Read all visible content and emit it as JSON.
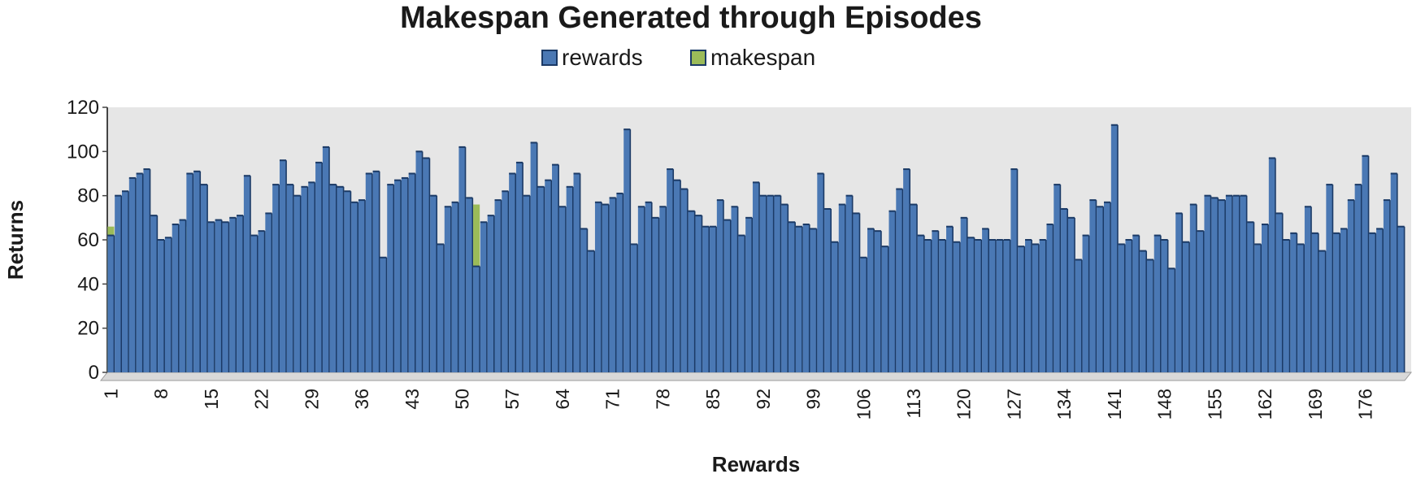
{
  "chart_data": {
    "type": "bar",
    "title": "Makespan Generated through Episodes",
    "xlabel": "Rewards",
    "ylabel": "Returns",
    "ylim": [
      0,
      120
    ],
    "yticks": [
      0,
      20,
      40,
      60,
      80,
      100,
      120
    ],
    "x_tick_labels": [
      "1",
      "8",
      "15",
      "22",
      "29",
      "36",
      "43",
      "50",
      "57",
      "64",
      "71",
      "78",
      "85",
      "92",
      "99",
      "106",
      "113",
      "120",
      "127",
      "134",
      "141",
      "148",
      "155",
      "162",
      "169",
      "176"
    ],
    "legend_placement": "top-center",
    "grid": false,
    "colors": {
      "rewards": "#4a78b4",
      "rewards_edge": "#1b3a66",
      "makespan": "#9bbb59",
      "plot_background": "#e6e6e6"
    },
    "categories": [
      1,
      2,
      3,
      4,
      5,
      6,
      7,
      8,
      9,
      10,
      11,
      12,
      13,
      14,
      15,
      16,
      17,
      18,
      19,
      20,
      21,
      22,
      23,
      24,
      25,
      26,
      27,
      28,
      29,
      30,
      31,
      32,
      33,
      34,
      35,
      36,
      37,
      38,
      39,
      40,
      41,
      42,
      43,
      44,
      45,
      46,
      47,
      48,
      49,
      50,
      51,
      52,
      53,
      54,
      55,
      56,
      57,
      58,
      59,
      60,
      61,
      62,
      63,
      64,
      65,
      66,
      67,
      68,
      69,
      70,
      71,
      72,
      73,
      74,
      75,
      76,
      77,
      78,
      79,
      80,
      81,
      82,
      83,
      84,
      85,
      86,
      87,
      88,
      89,
      90,
      91,
      92,
      93,
      94,
      95,
      96,
      97,
      98,
      99,
      100,
      101,
      102,
      103,
      104,
      105,
      106,
      107,
      108,
      109,
      110,
      111,
      112,
      113,
      114,
      115,
      116,
      117,
      118,
      119,
      120,
      121,
      122,
      123,
      124,
      125,
      126,
      127,
      128,
      129,
      130,
      131,
      132,
      133,
      134,
      135,
      136,
      137,
      138,
      139,
      140,
      141,
      142,
      143,
      144,
      145,
      146,
      147,
      148,
      149,
      150,
      151,
      152,
      153,
      154,
      155,
      156,
      157,
      158,
      159,
      160,
      161,
      162,
      163,
      164,
      165,
      166,
      167,
      168,
      169,
      170,
      171,
      172,
      173,
      174,
      175,
      176,
      177,
      178,
      179,
      180,
      181
    ],
    "series": [
      {
        "name": "rewards",
        "values": [
          62,
          80,
          82,
          88,
          90,
          92,
          71,
          60,
          61,
          67,
          69,
          90,
          91,
          85,
          68,
          69,
          68,
          70,
          71,
          89,
          62,
          64,
          72,
          85,
          96,
          85,
          80,
          84,
          86,
          95,
          102,
          85,
          84,
          82,
          77,
          78,
          90,
          91,
          52,
          85,
          87,
          88,
          90,
          100,
          97,
          80,
          58,
          75,
          77,
          102,
          79,
          48,
          68,
          71,
          78,
          82,
          90,
          95,
          80,
          104,
          84,
          87,
          94,
          75,
          84,
          90,
          65,
          55,
          77,
          76,
          79,
          81,
          110,
          58,
          75,
          77,
          70,
          75,
          92,
          87,
          83,
          73,
          71,
          66,
          66,
          78,
          69,
          75,
          62,
          70,
          86,
          80,
          80,
          80,
          76,
          68,
          66,
          67,
          65,
          90,
          74,
          59,
          76,
          80,
          72,
          52,
          65,
          64,
          57,
          73,
          83,
          92,
          76,
          62,
          60,
          64,
          60,
          66,
          59,
          70,
          61,
          60,
          65,
          60,
          60,
          60,
          92,
          57,
          60,
          58,
          60,
          67,
          85,
          74,
          70,
          51,
          62,
          78,
          75,
          77,
          112,
          58,
          60,
          62,
          55,
          51,
          62,
          60,
          47,
          72,
          59,
          76,
          64,
          80,
          79,
          78,
          80,
          80,
          80,
          68,
          58,
          67,
          97,
          72,
          60,
          63,
          58,
          75,
          63,
          55,
          85,
          63,
          65,
          78,
          85,
          98,
          63,
          65,
          78,
          90,
          66
        ]
      },
      {
        "name": "makespan",
        "values": [
          66,
          0,
          0,
          0,
          0,
          0,
          0,
          0,
          0,
          0,
          0,
          66,
          0,
          0,
          0,
          0,
          0,
          0,
          0,
          0,
          0,
          0,
          0,
          0,
          0,
          0,
          0,
          0,
          0,
          0,
          0,
          0,
          0,
          0,
          0,
          0,
          0,
          0,
          0,
          0,
          0,
          0,
          0,
          0,
          0,
          0,
          0,
          0,
          0,
          0,
          0,
          76,
          0,
          0,
          0,
          0,
          0,
          0,
          0,
          0,
          0,
          0,
          0,
          0,
          0,
          0,
          0,
          0,
          0,
          0,
          0,
          0,
          0,
          0,
          0,
          0,
          0,
          0,
          0,
          0,
          0,
          0,
          0,
          0,
          0,
          0,
          0,
          0,
          0,
          0,
          0,
          0,
          0,
          0,
          0,
          0,
          0,
          0,
          0,
          0,
          0,
          0,
          0,
          0,
          0,
          0,
          0,
          0,
          0,
          0,
          0,
          0,
          0,
          0,
          0,
          0,
          0,
          0,
          0,
          0,
          0,
          0,
          0,
          0,
          0,
          0,
          0,
          0,
          0,
          0,
          0,
          0,
          0,
          0,
          0,
          0,
          0,
          0,
          0,
          0,
          0,
          0,
          0,
          0,
          0,
          0,
          0,
          0,
          0,
          0,
          0,
          0,
          0,
          0,
          0,
          0,
          0,
          0,
          0,
          0,
          0,
          0,
          0,
          0,
          0,
          0,
          0,
          0,
          0,
          0,
          0,
          0,
          0,
          0,
          0,
          0,
          0,
          0,
          0,
          0,
          0
        ]
      }
    ]
  }
}
